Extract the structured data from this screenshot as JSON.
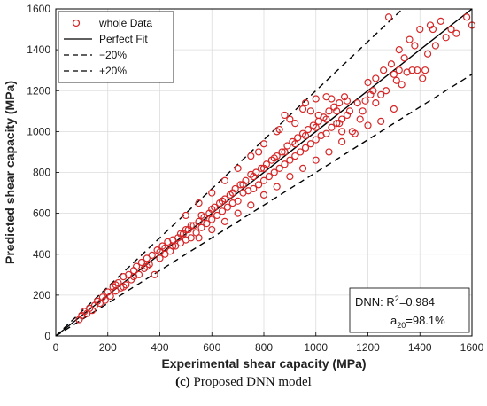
{
  "caption": {
    "label": "(c)",
    "text": "Proposed DNN model"
  },
  "chart_data": {
    "type": "scatter",
    "xlabel": "Experimental shear capacity (MPa)",
    "ylabel": "Predicted shear capacity (MPa)",
    "xlim": [
      0,
      1600
    ],
    "ylim": [
      0,
      1600
    ],
    "xticks": [
      0,
      200,
      400,
      600,
      800,
      1000,
      1200,
      1400,
      1600
    ],
    "yticks": [
      0,
      200,
      400,
      600,
      800,
      1000,
      1200,
      1400,
      1600
    ],
    "grid": true,
    "legend_position": "top-left",
    "legend": [
      {
        "label": "whole Data",
        "style": "circle-marker",
        "color": "#d62728"
      },
      {
        "label": "Perfect Fit",
        "style": "solid",
        "color": "#000000"
      },
      {
        "label": "−20%",
        "style": "dashed",
        "color": "#000000"
      },
      {
        "label": "+20%",
        "style": "dashed",
        "color": "#000000"
      }
    ],
    "lines": {
      "perfect_fit_slope": 1.0,
      "lower_slope": 0.8,
      "upper_slope": 1.2
    },
    "annotation": {
      "model": "DNN",
      "r2_label": "R",
      "r2_sup": "2",
      "r2_value": "=0.984",
      "a20_label": "a",
      "a20_sub": "20",
      "a20_value": "=98.1%",
      "position": "bottom-right"
    },
    "series": [
      {
        "name": "whole Data",
        "color": "#d62728",
        "points": [
          [
            90,
            80
          ],
          [
            110,
            120
          ],
          [
            120,
            110
          ],
          [
            130,
            135
          ],
          [
            140,
            125
          ],
          [
            160,
            170
          ],
          [
            180,
            190
          ],
          [
            190,
            175
          ],
          [
            200,
            215
          ],
          [
            210,
            195
          ],
          [
            220,
            240
          ],
          [
            230,
            220
          ],
          [
            240,
            260
          ],
          [
            250,
            235
          ],
          [
            260,
            290
          ],
          [
            270,
            250
          ],
          [
            280,
            300
          ],
          [
            290,
            275
          ],
          [
            300,
            320
          ],
          [
            310,
            340
          ],
          [
            320,
            300
          ],
          [
            330,
            360
          ],
          [
            340,
            330
          ],
          [
            350,
            380
          ],
          [
            360,
            350
          ],
          [
            370,
            395
          ],
          [
            380,
            300
          ],
          [
            390,
            420
          ],
          [
            400,
            380
          ],
          [
            410,
            440
          ],
          [
            420,
            400
          ],
          [
            430,
            460
          ],
          [
            440,
            415
          ],
          [
            450,
            470
          ],
          [
            460,
            440
          ],
          [
            470,
            480
          ],
          [
            480,
            455
          ],
          [
            490,
            500
          ],
          [
            500,
            470
          ],
          [
            510,
            520
          ],
          [
            520,
            480
          ],
          [
            530,
            540
          ],
          [
            540,
            505
          ],
          [
            550,
            560
          ],
          [
            560,
            530
          ],
          [
            570,
            580
          ],
          [
            580,
            550
          ],
          [
            590,
            600
          ],
          [
            600,
            570
          ],
          [
            610,
            630
          ],
          [
            620,
            590
          ],
          [
            630,
            650
          ],
          [
            640,
            610
          ],
          [
            650,
            670
          ],
          [
            660,
            630
          ],
          [
            670,
            690
          ],
          [
            680,
            650
          ],
          [
            690,
            720
          ],
          [
            700,
            660
          ],
          [
            710,
            740
          ],
          [
            720,
            700
          ],
          [
            730,
            760
          ],
          [
            740,
            710
          ],
          [
            750,
            790
          ],
          [
            760,
            720
          ],
          [
            770,
            800
          ],
          [
            780,
            740
          ],
          [
            790,
            820
          ],
          [
            800,
            760
          ],
          [
            810,
            840
          ],
          [
            820,
            780
          ],
          [
            830,
            860
          ],
          [
            840,
            800
          ],
          [
            850,
            880
          ],
          [
            860,
            820
          ],
          [
            870,
            900
          ],
          [
            880,
            840
          ],
          [
            890,
            930
          ],
          [
            900,
            860
          ],
          [
            910,
            950
          ],
          [
            920,
            880
          ],
          [
            930,
            970
          ],
          [
            940,
            900
          ],
          [
            950,
            990
          ],
          [
            960,
            920
          ],
          [
            970,
            1010
          ],
          [
            980,
            940
          ],
          [
            990,
            1030
          ],
          [
            1000,
            960
          ],
          [
            1010,
            1050
          ],
          [
            1020,
            980
          ],
          [
            1030,
            1070
          ],
          [
            1040,
            990
          ],
          [
            1050,
            1100
          ],
          [
            1060,
            1020
          ],
          [
            1070,
            1120
          ],
          [
            1080,
            1040
          ],
          [
            1090,
            1140
          ],
          [
            1100,
            1060
          ],
          [
            1110,
            1170
          ],
          [
            1120,
            1080
          ],
          [
            1140,
            1000
          ],
          [
            1160,
            1140
          ],
          [
            1180,
            1100
          ],
          [
            1200,
            1240
          ],
          [
            1210,
            1180
          ],
          [
            1220,
            1200
          ],
          [
            1230,
            1260
          ],
          [
            1250,
            1180
          ],
          [
            1260,
            1300
          ],
          [
            1280,
            1560
          ],
          [
            1290,
            1330
          ],
          [
            1300,
            1110
          ],
          [
            1310,
            1250
          ],
          [
            1320,
            1400
          ],
          [
            1330,
            1230
          ],
          [
            1340,
            1360
          ],
          [
            1350,
            1290
          ],
          [
            1360,
            1450
          ],
          [
            1370,
            1300
          ],
          [
            1380,
            1420
          ],
          [
            1390,
            1300
          ],
          [
            1400,
            1500
          ],
          [
            1410,
            1260
          ],
          [
            1420,
            1300
          ],
          [
            1430,
            1380
          ],
          [
            1440,
            1520
          ],
          [
            1450,
            1500
          ],
          [
            1460,
            1420
          ],
          [
            1480,
            1540
          ],
          [
            1500,
            1460
          ],
          [
            1520,
            1500
          ],
          [
            1540,
            1480
          ],
          [
            1580,
            1560
          ],
          [
            1600,
            1520
          ],
          [
            100,
            100
          ],
          [
            150,
            150
          ],
          [
            170,
            160
          ],
          [
            230,
            250
          ],
          [
            260,
            240
          ],
          [
            300,
            290
          ],
          [
            350,
            340
          ],
          [
            400,
            410
          ],
          [
            420,
            430
          ],
          [
            450,
            440
          ],
          [
            480,
            500
          ],
          [
            500,
            520
          ],
          [
            520,
            540
          ],
          [
            560,
            590
          ],
          [
            600,
            620
          ],
          [
            640,
            660
          ],
          [
            680,
            700
          ],
          [
            720,
            740
          ],
          [
            760,
            780
          ],
          [
            800,
            820
          ],
          [
            840,
            870
          ],
          [
            880,
            900
          ],
          [
            920,
            940
          ],
          [
            960,
            980
          ],
          [
            1000,
            1020
          ],
          [
            1040,
            1060
          ],
          [
            1080,
            1100
          ],
          [
            550,
            480
          ],
          [
            600,
            520
          ],
          [
            650,
            560
          ],
          [
            700,
            600
          ],
          [
            750,
            640
          ],
          [
            800,
            690
          ],
          [
            850,
            730
          ],
          [
            900,
            780
          ],
          [
            950,
            820
          ],
          [
            1000,
            860
          ],
          [
            1050,
            900
          ],
          [
            1100,
            950
          ],
          [
            500,
            590
          ],
          [
            550,
            650
          ],
          [
            600,
            700
          ],
          [
            650,
            760
          ],
          [
            700,
            820
          ],
          [
            750,
            880
          ],
          [
            800,
            940
          ],
          [
            850,
            1000
          ],
          [
            900,
            1060
          ],
          [
            950,
            1110
          ],
          [
            1000,
            1160
          ],
          [
            880,
            1080
          ],
          [
            960,
            1140
          ],
          [
            1040,
            1170
          ],
          [
            920,
            1040
          ],
          [
            860,
            1010
          ],
          [
            780,
            900
          ],
          [
            1100,
            1000
          ],
          [
            1150,
            990
          ],
          [
            1200,
            1030
          ],
          [
            1250,
            1050
          ],
          [
            1170,
            1060
          ],
          [
            1130,
            1100
          ],
          [
            1060,
            1160
          ],
          [
            980,
            1100
          ],
          [
            1010,
            1080
          ],
          [
            1090,
            1040
          ],
          [
            1120,
            1150
          ],
          [
            1190,
            1150
          ],
          [
            1270,
            1200
          ],
          [
            1230,
            1140
          ],
          [
            1320,
            1300
          ],
          [
            1300,
            1280
          ]
        ]
      }
    ]
  }
}
